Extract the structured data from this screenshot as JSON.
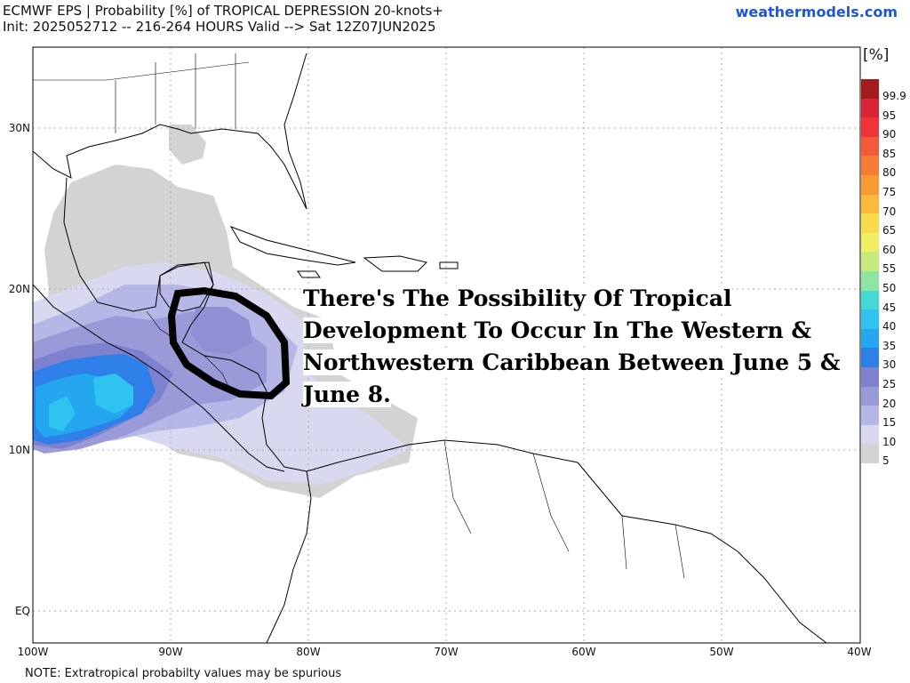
{
  "header": {
    "title": "ECMWF EPS | Probability [%] of TROPICAL DEPRESSION 20-knots+",
    "subtitle": "Init: 2025052712 -- 216-264 HOURS Valid --> Sat 12Z07JUN2025",
    "brand": "weathermodels.com"
  },
  "footer": {
    "note": "NOTE: Extratropical probabilty values may be spurious"
  },
  "map": {
    "lat_labels": [
      "30N",
      "20N",
      "10N",
      "EQ"
    ],
    "lon_labels": [
      "100W",
      "90W",
      "80W",
      "70W",
      "60W",
      "50W",
      "40W"
    ],
    "annotation": "There's The Possibility Of Tropical Development To Occur In The Western & Northwestern Caribbean Between June 5 & June 8.",
    "colors": {
      "land_outline": "#000000",
      "grid": "#aaaaaa",
      "circle": "#000000"
    }
  },
  "legend": {
    "unit": "[%]",
    "levels": [
      {
        "label": "99.9",
        "color": "#a31c1c"
      },
      {
        "label": "95",
        "color": "#d72535"
      },
      {
        "label": "90",
        "color": "#f0323a"
      },
      {
        "label": "85",
        "color": "#f25a3b"
      },
      {
        "label": "80",
        "color": "#f67b35"
      },
      {
        "label": "75",
        "color": "#f99a33"
      },
      {
        "label": "70",
        "color": "#fbba3b"
      },
      {
        "label": "65",
        "color": "#f9dc4a"
      },
      {
        "label": "60",
        "color": "#f1ee64"
      },
      {
        "label": "55",
        "color": "#c5ec7c"
      },
      {
        "label": "50",
        "color": "#8ee4a2"
      },
      {
        "label": "45",
        "color": "#44d9d3"
      },
      {
        "label": "40",
        "color": "#2fc4ef"
      },
      {
        "label": "35",
        "color": "#24a7ef"
      },
      {
        "label": "30",
        "color": "#2f7fe8"
      },
      {
        "label": "25",
        "color": "#7e82ce"
      },
      {
        "label": "20",
        "color": "#9a9ad8"
      },
      {
        "label": "15",
        "color": "#b5b8e6"
      },
      {
        "label": "10",
        "color": "#d8d9f0"
      },
      {
        "label": "5",
        "color": "#d3d3d3"
      }
    ]
  }
}
